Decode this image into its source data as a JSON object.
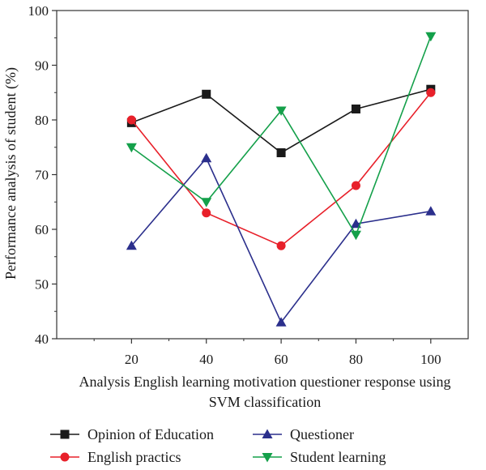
{
  "chart_data": {
    "type": "line",
    "title": "",
    "xlabel_lines": [
      "Analysis English learning motivation questioner response using",
      "SVM classification"
    ],
    "ylabel": "Performance analysis of student (%)",
    "x": [
      20,
      40,
      60,
      80,
      100
    ],
    "x_ticks": [
      20,
      40,
      60,
      80,
      100
    ],
    "xlim": [
      0,
      110
    ],
    "ylim": [
      40,
      100
    ],
    "y_ticks": [
      40,
      50,
      60,
      70,
      80,
      90,
      100
    ],
    "grid": false,
    "legend_position": "bottom",
    "series": [
      {
        "name": "Opinion of Education",
        "values": [
          79.5,
          84.7,
          74,
          82,
          85.6
        ],
        "color": "#1a1a1a",
        "marker": "square"
      },
      {
        "name": "English practics",
        "values": [
          80,
          63,
          57,
          68,
          85
        ],
        "color": "#e8202a",
        "marker": "circle"
      },
      {
        "name": "Questioner",
        "values": [
          57,
          73,
          43,
          61,
          63.3
        ],
        "color": "#2b2f8c",
        "marker": "triangle-up"
      },
      {
        "name": "Student learning",
        "values": [
          75,
          65,
          81.7,
          59,
          95.3
        ],
        "color": "#14a04a",
        "marker": "triangle-down"
      }
    ]
  }
}
